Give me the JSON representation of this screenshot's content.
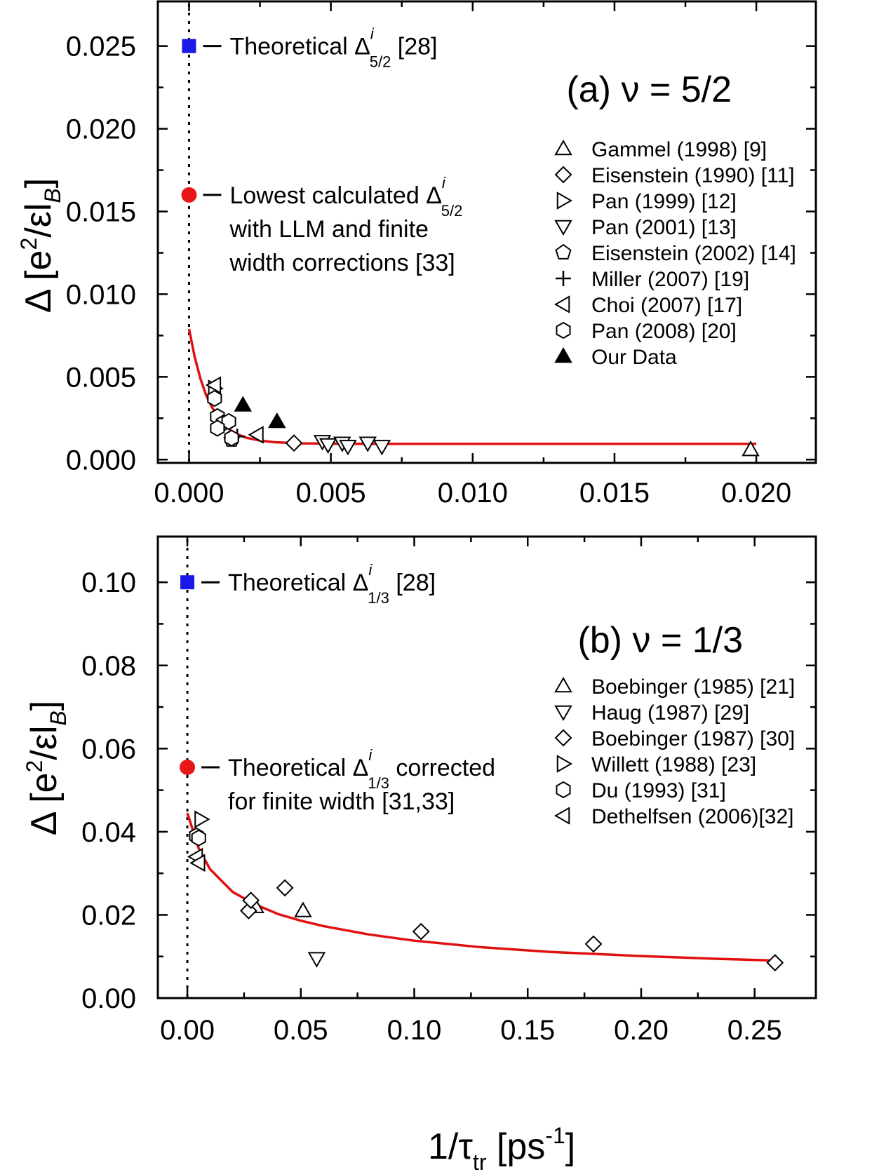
{
  "figure": {
    "ylabel_delta": "Δ [e",
    "ylabel_sup": "2",
    "ylabel_mid": "/εl",
    "ylabel_sub": "B",
    "ylabel_end": "]",
    "xlabel_main": "1/τ",
    "xlabel_sub": "tr",
    "xlabel_unit": " [ps",
    "xlabel_sup": "-1",
    "xlabel_end": "]"
  },
  "chart_data": [
    {
      "type": "scatter",
      "panel_title": "(a) ν = 5/2",
      "xlim": [
        -0.0011,
        0.0221
      ],
      "ylim": [
        -0.0002,
        0.0277
      ],
      "xticks": [
        0.0,
        0.005,
        0.01,
        0.015,
        0.02
      ],
      "xtick_labels": [
        "0.000",
        "0.005",
        "0.010",
        "0.015",
        "0.020"
      ],
      "yticks": [
        0.0,
        0.005,
        0.01,
        0.015,
        0.02,
        0.025
      ],
      "ytick_labels": [
        "0.000",
        "0.005",
        "0.010",
        "0.015",
        "0.020",
        "0.025"
      ],
      "grid": "ticks only",
      "legend_placement": "right",
      "annotations": [
        {
          "marker": "square",
          "color": "#1a1ae6",
          "x": 0.0,
          "y": 0.025,
          "text": "Theoretical Δ",
          "sup": "i",
          "sub": "5/2",
          "after": " [28]",
          "lines": []
        },
        {
          "marker": "circle",
          "color": "#e81818",
          "x": 0.0,
          "y": 0.016,
          "text": "Lowest calculated Δ",
          "sup": "i",
          "sub": "5/2",
          "after": "",
          "lines": [
            "with LLM and finite",
            "width corrections [33]"
          ]
        }
      ],
      "fit": {
        "color": "#e01010",
        "x": [
          0.0,
          0.0002,
          0.0004,
          0.0006,
          0.0008,
          0.001,
          0.0013,
          0.0016,
          0.002,
          0.0025,
          0.003,
          0.004,
          0.005,
          0.007,
          0.01,
          0.015,
          0.02
        ],
        "y": [
          0.0079,
          0.0062,
          0.0049,
          0.0039,
          0.0032,
          0.0026,
          0.002,
          0.0016,
          0.00133,
          0.00115,
          0.00105,
          0.00098,
          0.00096,
          0.00095,
          0.00095,
          0.00095,
          0.00095
        ]
      },
      "series": [
        {
          "name": "Gammel (1998) [9]",
          "marker": "triangle-up",
          "filled": false,
          "points": [
            [
              0.0198,
              0.0006
            ]
          ]
        },
        {
          "name": "Eisenstein (1990) [11]",
          "marker": "diamond",
          "filled": false,
          "points": [
            [
              0.0037,
              0.001
            ]
          ]
        },
        {
          "name": "Pan (1999) [12]",
          "marker": "triangle-right",
          "filled": false,
          "points": [
            [
              0.0009,
              0.0043
            ]
          ]
        },
        {
          "name": "Pan (2001) [13]",
          "marker": "triangle-down",
          "filled": false,
          "points": [
            [
              0.0047,
              0.0011
            ],
            [
              0.0049,
              0.0009
            ],
            [
              0.0054,
              0.001
            ],
            [
              0.0056,
              0.0008
            ],
            [
              0.0063,
              0.001
            ],
            [
              0.0068,
              0.0008
            ]
          ]
        },
        {
          "name": "Eisenstein (2002) [14]",
          "marker": "pentagon",
          "filled": false,
          "points": [
            [
              0.0015,
              0.0012
            ]
          ]
        },
        {
          "name": "Miller (2007) [19]",
          "marker": "plus",
          "filled": false,
          "points": [
            [
              0.0017,
              0.0014
            ]
          ]
        },
        {
          "name": "Choi (2007) [17]",
          "marker": "triangle-left",
          "filled": false,
          "points": [
            [
              0.0009,
              0.0045
            ],
            [
              0.0024,
              0.0015
            ]
          ]
        },
        {
          "name": "Pan (2008) [20]",
          "marker": "hexagon",
          "filled": false,
          "points": [
            [
              0.0009,
              0.0037
            ],
            [
              0.001,
              0.0026
            ],
            [
              0.0012,
              0.0022
            ],
            [
              0.0014,
              0.0023
            ],
            [
              0.001,
              0.0019
            ],
            [
              0.0015,
              0.0013
            ]
          ]
        },
        {
          "name": "Our Data",
          "marker": "triangle-up",
          "filled": true,
          "points": [
            [
              0.0019,
              0.0033
            ],
            [
              0.0031,
              0.0023
            ]
          ]
        }
      ]
    },
    {
      "type": "scatter",
      "panel_title": "(b) ν = 1/3",
      "xlim": [
        -0.013,
        0.277
      ],
      "ylim": [
        0.0,
        0.111
      ],
      "xticks": [
        0.0,
        0.05,
        0.1,
        0.15,
        0.2,
        0.25
      ],
      "xtick_labels": [
        "0.00",
        "0.05",
        "0.10",
        "0.15",
        "0.20",
        "0.25"
      ],
      "yticks": [
        0.0,
        0.02,
        0.04,
        0.06,
        0.08,
        0.1
      ],
      "ytick_labels": [
        "0.00",
        "0.02",
        "0.04",
        "0.06",
        "0.08",
        "0.10"
      ],
      "grid": "ticks only",
      "legend_placement": "right",
      "annotations": [
        {
          "marker": "square",
          "color": "#1a1ae6",
          "x": 0.0,
          "y": 0.1,
          "text": "Theoretical Δ",
          "sup": "i",
          "sub": "1/3",
          "after": " [28]",
          "lines": []
        },
        {
          "marker": "circle",
          "color": "#e81818",
          "x": 0.0,
          "y": 0.0555,
          "text": "Theoretical Δ",
          "sup": "i",
          "sub": "1/3",
          "after": " corrected",
          "lines": [
            "for finite width [31,33]"
          ]
        }
      ],
      "fit": {
        "color": "#e01010",
        "x": [
          0.0,
          0.005,
          0.01,
          0.02,
          0.03,
          0.04,
          0.05,
          0.06,
          0.08,
          0.1,
          0.13,
          0.16,
          0.2,
          0.23,
          0.26
        ],
        "y": [
          0.0445,
          0.036,
          0.031,
          0.0255,
          0.0225,
          0.0202,
          0.0186,
          0.0173,
          0.0153,
          0.0138,
          0.0122,
          0.0111,
          0.0101,
          0.0095,
          0.009
        ]
      },
      "series": [
        {
          "name": "Boebinger (1985) [21]",
          "marker": "triangle-up",
          "filled": false,
          "points": [
            [
              0.03,
              0.022
            ],
            [
              0.051,
              0.021
            ]
          ]
        },
        {
          "name": "Haug (1987) [29]",
          "marker": "triangle-down",
          "filled": false,
          "points": [
            [
              0.057,
              0.0095
            ]
          ]
        },
        {
          "name": "Boebinger (1987) [30]",
          "marker": "diamond",
          "filled": false,
          "points": [
            [
              0.027,
              0.021
            ],
            [
              0.028,
              0.0235
            ],
            [
              0.043,
              0.0265
            ],
            [
              0.103,
              0.016
            ],
            [
              0.179,
              0.013
            ],
            [
              0.259,
              0.0085
            ]
          ]
        },
        {
          "name": "Willett (1988) [23]",
          "marker": "triangle-right",
          "filled": false,
          "points": [
            [
              0.006,
              0.043
            ]
          ]
        },
        {
          "name": "Du (1993) [31]",
          "marker": "hexagon",
          "filled": false,
          "points": [
            [
              0.004,
              0.039
            ],
            [
              0.005,
              0.0385
            ]
          ]
        },
        {
          "name": "Dethelfsen (2006)[32]",
          "marker": "triangle-left",
          "filled": false,
          "points": [
            [
              0.004,
              0.034
            ],
            [
              0.005,
              0.0325
            ]
          ]
        }
      ]
    }
  ]
}
